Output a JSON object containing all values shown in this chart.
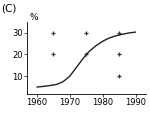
{
  "title_label": "(C)",
  "ylabel": "%",
  "xticks": [
    1960,
    1970,
    1980,
    1990
  ],
  "yticks": [
    10,
    20,
    30
  ],
  "ylim": [
    2,
    35
  ],
  "xlim": [
    1957,
    1993
  ],
  "curve_x": [
    1960,
    1962,
    1964,
    1966,
    1968,
    1970,
    1972,
    1974,
    1976,
    1978,
    1980,
    1982,
    1984,
    1986,
    1988,
    1990
  ],
  "curve_y": [
    5,
    5.3,
    5.7,
    6.2,
    7.5,
    10,
    14,
    18,
    21.5,
    24,
    26,
    27.5,
    28.5,
    29.2,
    29.8,
    30.2
  ],
  "plus_x": [
    1965,
    1965,
    1975,
    1975,
    1985,
    1985,
    1985
  ],
  "plus_y": [
    30,
    20,
    30,
    20,
    30,
    20,
    10
  ],
  "bg_color": "#ffffff",
  "line_color": "#222222",
  "plus_color": "#333333",
  "label_color": "#000000",
  "font_size_ticks": 6,
  "font_size_ylabel": 6.5,
  "font_size_title": 7.5,
  "line_width": 1.0
}
